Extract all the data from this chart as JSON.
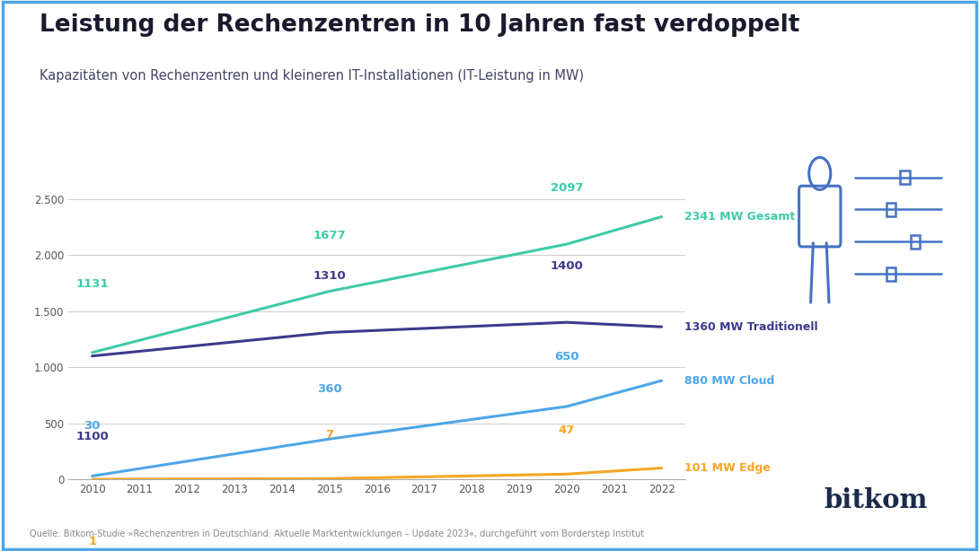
{
  "title": "Leistung der Rechenzentren in 10 Jahren fast verdoppelt",
  "subtitle": "Kapazitäten von Rechenzentren und kleineren IT-Installationen (IT-Leistung in MW)",
  "source": "Quelle: Bitkom-Studie »Rechenzentren in Deutschland: Aktuelle Marktentwicklungen – Update 2023«, durchgeführt vom Borderstep Institut",
  "years": [
    2010,
    2011,
    2012,
    2013,
    2014,
    2015,
    2016,
    2017,
    2018,
    2019,
    2020,
    2021,
    2022
  ],
  "gesamt_key_years": [
    2010,
    2015,
    2020,
    2022
  ],
  "gesamt_key_values": [
    1131,
    1677,
    2097,
    2341
  ],
  "traditionell_key_years": [
    2010,
    2015,
    2020,
    2022
  ],
  "traditionell_key_values": [
    1100,
    1310,
    1400,
    1360
  ],
  "cloud_key_years": [
    2010,
    2015,
    2020,
    2022
  ],
  "cloud_key_values": [
    30,
    360,
    650,
    880
  ],
  "edge_key_years": [
    2010,
    2015,
    2020,
    2022
  ],
  "edge_key_values": [
    1,
    7,
    47,
    101
  ],
  "color_gesamt": "#3ecaaa",
  "color_traditionell": "#3d3a8c",
  "color_cloud": "#4da6e8",
  "color_edge": "#f5a623",
  "color_background": "#ffffff",
  "color_border": "#4da6e8",
  "color_title": "#1a1a2e",
  "color_subtitle": "#333355",
  "color_source": "#888888",
  "color_icon": "#4472c4",
  "ylim": [
    0,
    2800
  ],
  "yticks": [
    0,
    500,
    1000,
    1500,
    2000,
    2500
  ],
  "ytick_labels": [
    "0",
    "500",
    "1.000",
    "1.500",
    "2.000",
    "2.500"
  ],
  "label_gesamt_end": "2341 MW Gesamt",
  "label_traditionell_end": "1360 MW Traditionell",
  "label_cloud_end": "880 MW Cloud",
  "label_edge_end": "101 MW Edge",
  "bitkom_text": "bitkom",
  "figsize": [
    10.9,
    6.14
  ],
  "dpi": 100
}
